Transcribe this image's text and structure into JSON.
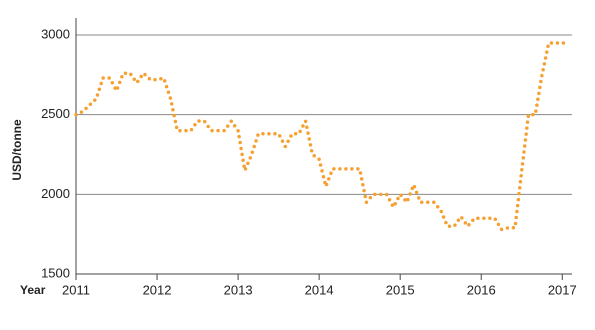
{
  "chart_data": {
    "type": "line",
    "x_label": "Year",
    "y_label": "USD/tonne",
    "color": "#f5a030",
    "x": [
      2011,
      2011.083,
      2011.167,
      2011.25,
      2011.333,
      2011.417,
      2011.5,
      2011.583,
      2011.667,
      2011.75,
      2011.833,
      2011.917,
      2012,
      2012.083,
      2012.167,
      2012.25,
      2012.333,
      2012.417,
      2012.5,
      2012.583,
      2012.667,
      2012.75,
      2012.833,
      2012.917,
      2013,
      2013.083,
      2013.167,
      2013.25,
      2013.333,
      2013.417,
      2013.5,
      2013.583,
      2013.667,
      2013.75,
      2013.833,
      2013.917,
      2014,
      2014.083,
      2014.167,
      2014.25,
      2014.333,
      2014.417,
      2014.5,
      2014.583,
      2014.667,
      2014.75,
      2014.833,
      2014.917,
      2015,
      2015.083,
      2015.167,
      2015.25,
      2015.333,
      2015.417,
      2015.5,
      2015.583,
      2015.667,
      2015.75,
      2015.833,
      2015.917,
      2016,
      2016.083,
      2016.167,
      2016.25,
      2016.333,
      2016.417,
      2016.5,
      2016.583,
      2016.667,
      2016.75,
      2016.833,
      2016.917,
      2017,
      2017.083
    ],
    "values": [
      2500,
      2520,
      2560,
      2600,
      2730,
      2730,
      2650,
      2760,
      2760,
      2700,
      2760,
      2720,
      2720,
      2730,
      2600,
      2400,
      2400,
      2400,
      2460,
      2460,
      2400,
      2400,
      2400,
      2460,
      2400,
      2150,
      2250,
      2380,
      2380,
      2380,
      2380,
      2300,
      2380,
      2380,
      2460,
      2250,
      2220,
      2050,
      2160,
      2160,
      2160,
      2160,
      2160,
      1950,
      2000,
      2000,
      2000,
      1920,
      2000,
      1950,
      2060,
      1950,
      1950,
      1950,
      1900,
      1800,
      1800,
      1860,
      1800,
      1850,
      1850,
      1850,
      1850,
      1780,
      1790,
      1790,
      2150,
      2500,
      2500,
      2750,
      2950,
      2950,
      2950,
      2950
    ],
    "xlim": [
      2011,
      2017.12
    ],
    "xticks": [
      2011,
      2012,
      2013,
      2014,
      2015,
      2016,
      2017
    ],
    "ylim": [
      1500,
      3000
    ],
    "yticks": [
      1500,
      2000,
      2500,
      3000
    ],
    "grid": true
  }
}
